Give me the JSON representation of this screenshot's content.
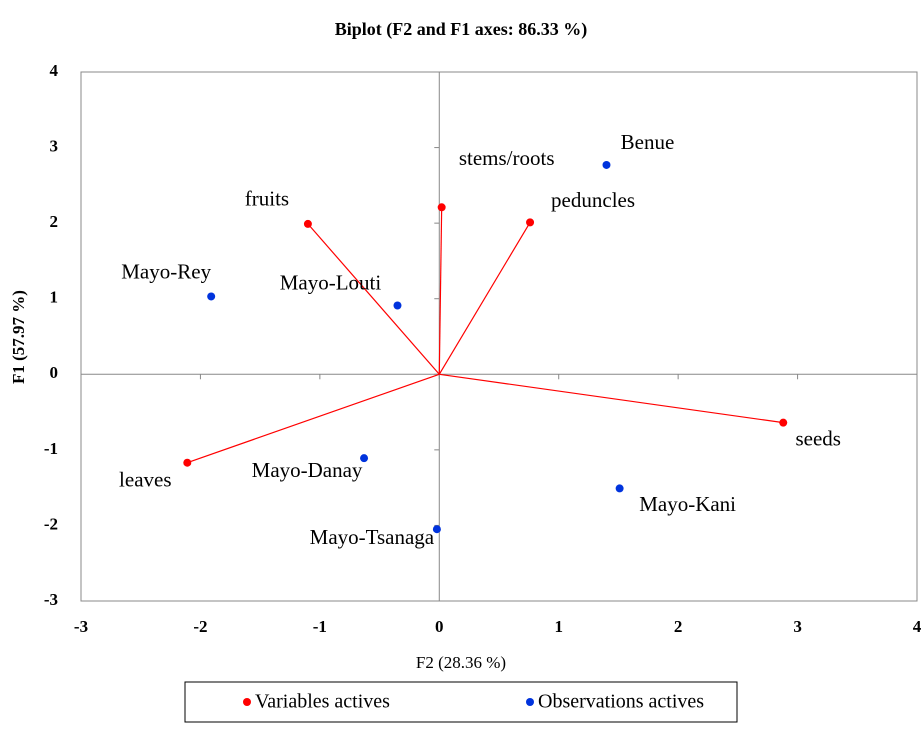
{
  "chart_data": {
    "type": "scatter",
    "title": "Biplot (F2 and F1 axes: 86.33 %)",
    "x_label": "F2 (28.36 %)",
    "y_label": "F1 (57.97 %)",
    "xlim": [
      -3,
      4
    ],
    "ylim": [
      -3,
      4
    ],
    "xticks": [
      -3,
      -2,
      -1,
      0,
      1,
      2,
      3,
      4
    ],
    "yticks": [
      -3,
      -2,
      -1,
      0,
      1,
      2,
      3,
      4
    ],
    "series": [
      {
        "name": "Variables actives",
        "color": "#ff0000",
        "vectors": true,
        "labels": [
          "fruits",
          "stems/roots",
          "peduncles",
          "seeds",
          "leaves"
        ],
        "x": [
          -1.1,
          0.02,
          0.76,
          2.88,
          -2.11
        ],
        "values": [
          1.99,
          2.21,
          2.01,
          -0.64,
          -1.17
        ]
      },
      {
        "name": "Observations actives",
        "color": "#0033dd",
        "vectors": false,
        "labels": [
          "Benue",
          "Mayo-Rey",
          "Mayo-Louti",
          "Mayo-Danay",
          "Mayo-Tsanaga",
          "Mayo-Kani"
        ],
        "x": [
          1.4,
          -1.91,
          -0.35,
          -0.63,
          -0.02,
          1.51
        ],
        "values": [
          2.77,
          1.03,
          0.91,
          -1.11,
          -2.05,
          -1.51
        ]
      }
    ]
  }
}
